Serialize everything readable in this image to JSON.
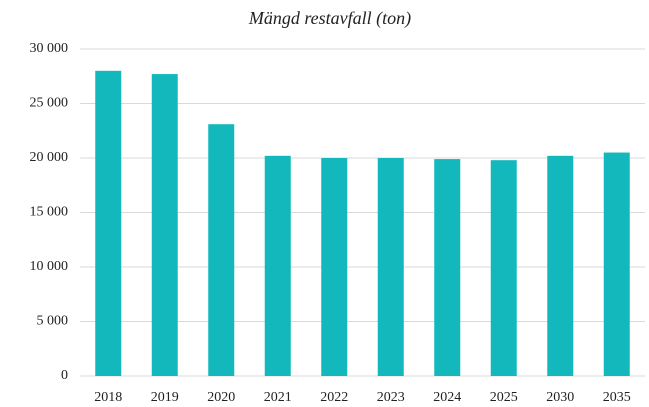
{
  "chart_data": {
    "type": "bar",
    "title": "Mängd restavfall (ton)",
    "categories": [
      "2018",
      "2019",
      "2020",
      "2021",
      "2022",
      "2023",
      "2024",
      "2025",
      "2030",
      "2035"
    ],
    "values": [
      28000,
      27700,
      23100,
      20200,
      20000,
      20000,
      19900,
      19800,
      20200,
      20500
    ],
    "color": "#12b8bc",
    "ylim": [
      0,
      30000
    ],
    "yticks": [
      0,
      {
        "value": 5000,
        "label": "5 000"
      },
      {
        "value": 10000,
        "label": "10 000"
      },
      {
        "value": 15000,
        "label": "15 000"
      },
      {
        "value": 20000,
        "label": "20 000"
      },
      {
        "value": 25000,
        "label": "25 000"
      },
      {
        "value": 30000,
        "label": "30 000"
      }
    ],
    "grid": true
  }
}
